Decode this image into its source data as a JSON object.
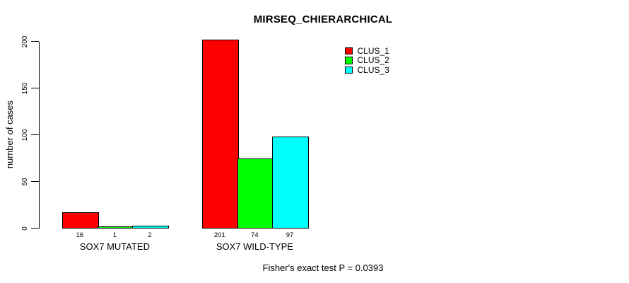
{
  "chart_data": {
    "type": "bar",
    "title": "MIRSEQ_CHIERARCHICAL",
    "ylabel": "number of cases",
    "xlabel": "",
    "categories": [
      "SOX7 MUTATED",
      "SOX7 WILD-TYPE"
    ],
    "series": [
      {
        "name": "CLUS_1",
        "color": "#FF0000",
        "values": [
          16,
          201
        ]
      },
      {
        "name": "CLUS_2",
        "color": "#00FF00",
        "values": [
          1,
          74
        ]
      },
      {
        "name": "CLUS_3",
        "color": "#00FFFF",
        "values": [
          2,
          97
        ]
      }
    ],
    "bar_value_labels": [
      [
        16,
        1,
        2
      ],
      [
        201,
        74,
        97
      ]
    ],
    "yticks": [
      0,
      50,
      100,
      150,
      200
    ],
    "ylim": [
      0,
      200
    ],
    "grid": false,
    "legend_position": "top-right",
    "footer": "Fisher's exact test P = 0.0393",
    "background_color": "#FFFFFF",
    "axis_color": "#000000"
  }
}
